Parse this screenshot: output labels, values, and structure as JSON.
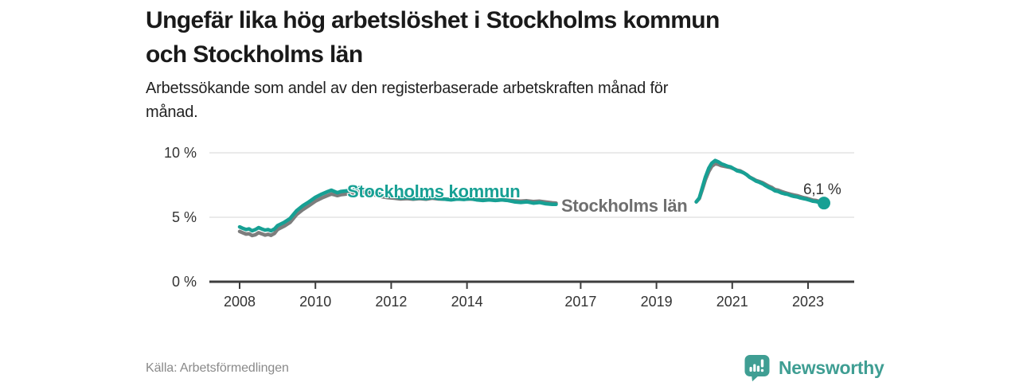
{
  "header": {
    "title_lines": [
      "Ungefär lika hög arbetslöshet i Stockholms kommun",
      "och Stockholms län"
    ],
    "subtitle_lines": [
      "Arbetssökande som andel av den registerbaserade arbetskraften månad för",
      "månad."
    ]
  },
  "footer": {
    "source": "Källa: Arbetsförmedlingen",
    "brand": "Newsworthy",
    "brand_color": "#3f9e93"
  },
  "chart_data": {
    "type": "line",
    "title": "Ungefär lika hög arbetslöshet i Stockholms kommun och Stockholms län",
    "unit": "%",
    "x_range": [
      2008,
      2023.42
    ],
    "y_range": [
      0,
      10
    ],
    "x_ticks": [
      2008,
      2010,
      2012,
      2014,
      2017,
      2019,
      2021,
      2023
    ],
    "y_ticks": [
      {
        "value": 0,
        "label": "0 %"
      },
      {
        "value": 5,
        "label": "5 %"
      },
      {
        "value": 10,
        "label": "10 %"
      }
    ],
    "grid_color": "#dedede",
    "axis_color": "#3d3d3d",
    "series": [
      {
        "name": "Stockholms kommun",
        "color": "#17a094",
        "end_dot": {
          "x": 2023.42,
          "y": 6.1,
          "label": "6,1 %"
        },
        "segments": [
          [
            [
              2008.0,
              4.25
            ],
            [
              2008.08,
              4.15
            ],
            [
              2008.17,
              4.05
            ],
            [
              2008.25,
              4.1
            ],
            [
              2008.33,
              3.95
            ],
            [
              2008.42,
              4.05
            ],
            [
              2008.5,
              4.2
            ],
            [
              2008.58,
              4.1
            ],
            [
              2008.67,
              4.0
            ],
            [
              2008.75,
              4.05
            ],
            [
              2008.83,
              3.95
            ],
            [
              2008.92,
              4.1
            ],
            [
              2009.0,
              4.35
            ],
            [
              2009.17,
              4.6
            ],
            [
              2009.33,
              4.9
            ],
            [
              2009.5,
              5.5
            ],
            [
              2009.67,
              5.9
            ],
            [
              2009.83,
              6.2
            ],
            [
              2010.0,
              6.55
            ],
            [
              2010.17,
              6.8
            ],
            [
              2010.33,
              7.0
            ],
            [
              2010.42,
              7.1
            ],
            [
              2010.5,
              7.0
            ],
            [
              2010.58,
              6.9
            ],
            [
              2010.67,
              7.0
            ],
            [
              2010.83,
              7.05
            ],
            [
              2011.0,
              7.1
            ],
            [
              2011.08,
              7.25
            ],
            [
              2011.17,
              7.3
            ],
            [
              2011.25,
              7.2
            ],
            [
              2011.42,
              7.05
            ],
            [
              2011.58,
              6.9
            ],
            [
              2011.75,
              6.75
            ],
            [
              2011.92,
              6.65
            ],
            [
              2012.08,
              6.6
            ],
            [
              2012.25,
              6.5
            ],
            [
              2012.42,
              6.55
            ],
            [
              2012.58,
              6.45
            ],
            [
              2012.75,
              6.5
            ],
            [
              2012.92,
              6.45
            ],
            [
              2013.08,
              6.55
            ],
            [
              2013.25,
              6.45
            ],
            [
              2013.42,
              6.4
            ],
            [
              2013.58,
              6.35
            ],
            [
              2013.75,
              6.42
            ],
            [
              2013.92,
              6.38
            ],
            [
              2014.08,
              6.45
            ],
            [
              2014.25,
              6.35
            ],
            [
              2014.42,
              6.3
            ],
            [
              2014.58,
              6.35
            ],
            [
              2014.75,
              6.3
            ],
            [
              2014.92,
              6.35
            ],
            [
              2015.08,
              6.3
            ],
            [
              2015.25,
              6.2
            ],
            [
              2015.42,
              6.15
            ],
            [
              2015.58,
              6.2
            ],
            [
              2015.75,
              6.1
            ],
            [
              2015.92,
              6.15
            ],
            [
              2016.08,
              6.05
            ],
            [
              2016.25,
              6.0
            ],
            [
              2016.35,
              6.0
            ]
          ],
          [
            [
              2020.05,
              6.2
            ],
            [
              2020.13,
              6.5
            ],
            [
              2020.21,
              7.3
            ],
            [
              2020.29,
              8.1
            ],
            [
              2020.38,
              8.8
            ],
            [
              2020.46,
              9.2
            ],
            [
              2020.55,
              9.4
            ],
            [
              2020.63,
              9.3
            ],
            [
              2020.71,
              9.15
            ],
            [
              2020.8,
              9.05
            ],
            [
              2020.88,
              8.95
            ],
            [
              2020.96,
              8.9
            ],
            [
              2021.05,
              8.75
            ],
            [
              2021.13,
              8.6
            ],
            [
              2021.21,
              8.55
            ],
            [
              2021.3,
              8.45
            ],
            [
              2021.38,
              8.3
            ],
            [
              2021.46,
              8.1
            ],
            [
              2021.55,
              7.95
            ],
            [
              2021.63,
              7.8
            ],
            [
              2021.71,
              7.72
            ],
            [
              2021.8,
              7.6
            ],
            [
              2021.88,
              7.45
            ],
            [
              2021.96,
              7.32
            ],
            [
              2022.05,
              7.2
            ],
            [
              2022.13,
              7.05
            ],
            [
              2022.21,
              7.0
            ],
            [
              2022.3,
              6.88
            ],
            [
              2022.38,
              6.82
            ],
            [
              2022.46,
              6.78
            ],
            [
              2022.55,
              6.68
            ],
            [
              2022.63,
              6.62
            ],
            [
              2022.71,
              6.58
            ],
            [
              2022.8,
              6.5
            ],
            [
              2022.88,
              6.45
            ],
            [
              2022.96,
              6.4
            ],
            [
              2023.05,
              6.32
            ],
            [
              2023.13,
              6.25
            ],
            [
              2023.21,
              6.22
            ],
            [
              2023.3,
              6.15
            ],
            [
              2023.42,
              6.1
            ]
          ]
        ]
      },
      {
        "name": "Stockholms län",
        "color": "#7d7d7d",
        "segments": [
          [
            [
              2008.0,
              3.9
            ],
            [
              2008.08,
              3.8
            ],
            [
              2008.17,
              3.7
            ],
            [
              2008.25,
              3.72
            ],
            [
              2008.33,
              3.58
            ],
            [
              2008.42,
              3.65
            ],
            [
              2008.5,
              3.8
            ],
            [
              2008.58,
              3.72
            ],
            [
              2008.67,
              3.62
            ],
            [
              2008.75,
              3.68
            ],
            [
              2008.83,
              3.6
            ],
            [
              2008.92,
              3.75
            ],
            [
              2009.0,
              4.05
            ],
            [
              2009.17,
              4.3
            ],
            [
              2009.33,
              4.6
            ],
            [
              2009.5,
              5.2
            ],
            [
              2009.67,
              5.6
            ],
            [
              2009.83,
              5.9
            ],
            [
              2010.0,
              6.25
            ],
            [
              2010.17,
              6.5
            ],
            [
              2010.33,
              6.7
            ],
            [
              2010.42,
              6.8
            ],
            [
              2010.5,
              6.75
            ],
            [
              2010.58,
              6.68
            ],
            [
              2010.67,
              6.75
            ],
            [
              2010.83,
              6.8
            ],
            [
              2011.0,
              6.85
            ],
            [
              2011.08,
              6.95
            ],
            [
              2011.17,
              7.0
            ],
            [
              2011.25,
              6.95
            ],
            [
              2011.42,
              6.85
            ],
            [
              2011.58,
              6.72
            ],
            [
              2011.75,
              6.6
            ],
            [
              2011.92,
              6.52
            ],
            [
              2012.08,
              6.48
            ],
            [
              2012.25,
              6.42
            ],
            [
              2012.42,
              6.45
            ],
            [
              2012.58,
              6.4
            ],
            [
              2012.75,
              6.45
            ],
            [
              2012.92,
              6.4
            ],
            [
              2013.08,
              6.48
            ],
            [
              2013.25,
              6.42
            ],
            [
              2013.42,
              6.4
            ],
            [
              2013.58,
              6.38
            ],
            [
              2013.75,
              6.42
            ],
            [
              2013.92,
              6.4
            ],
            [
              2014.08,
              6.42
            ],
            [
              2014.25,
              6.38
            ],
            [
              2014.42,
              6.35
            ],
            [
              2014.58,
              6.38
            ],
            [
              2014.75,
              6.32
            ],
            [
              2014.92,
              6.35
            ],
            [
              2015.08,
              6.32
            ],
            [
              2015.25,
              6.28
            ],
            [
              2015.42,
              6.25
            ],
            [
              2015.58,
              6.28
            ],
            [
              2015.75,
              6.22
            ],
            [
              2015.92,
              6.25
            ],
            [
              2016.08,
              6.18
            ],
            [
              2016.25,
              6.12
            ],
            [
              2016.35,
              6.1
            ]
          ],
          [
            [
              2020.05,
              6.2
            ],
            [
              2020.13,
              6.45
            ],
            [
              2020.21,
              7.15
            ],
            [
              2020.29,
              7.9
            ],
            [
              2020.38,
              8.55
            ],
            [
              2020.46,
              8.95
            ],
            [
              2020.55,
              9.15
            ],
            [
              2020.63,
              9.1
            ],
            [
              2020.71,
              9.0
            ],
            [
              2020.8,
              8.95
            ],
            [
              2020.88,
              8.9
            ],
            [
              2020.96,
              8.85
            ],
            [
              2021.05,
              8.75
            ],
            [
              2021.13,
              8.65
            ],
            [
              2021.21,
              8.6
            ],
            [
              2021.3,
              8.45
            ],
            [
              2021.38,
              8.3
            ],
            [
              2021.46,
              8.12
            ],
            [
              2021.55,
              7.98
            ],
            [
              2021.63,
              7.85
            ],
            [
              2021.71,
              7.78
            ],
            [
              2021.8,
              7.68
            ],
            [
              2021.88,
              7.55
            ],
            [
              2021.96,
              7.42
            ],
            [
              2022.05,
              7.3
            ],
            [
              2022.13,
              7.15
            ],
            [
              2022.21,
              7.1
            ],
            [
              2022.3,
              7.0
            ],
            [
              2022.38,
              6.92
            ],
            [
              2022.46,
              6.85
            ],
            [
              2022.55,
              6.78
            ],
            [
              2022.63,
              6.72
            ],
            [
              2022.71,
              6.68
            ],
            [
              2022.8,
              6.6
            ],
            [
              2022.88,
              6.52
            ],
            [
              2022.96,
              6.48
            ],
            [
              2023.05,
              6.4
            ],
            [
              2023.13,
              6.33
            ],
            [
              2023.21,
              6.3
            ],
            [
              2023.3,
              6.22
            ],
            [
              2023.42,
              6.15
            ]
          ]
        ]
      }
    ]
  }
}
